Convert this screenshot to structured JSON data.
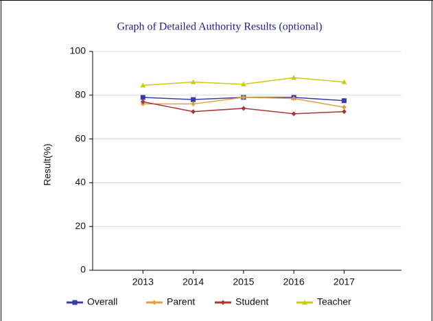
{
  "chart_data": {
    "type": "line",
    "title": "Graph of Detailed Authority Results (optional)",
    "y_label": "Result(%)",
    "categories": [
      "2013",
      "2014",
      "2015",
      "2016",
      "2017"
    ],
    "series": [
      {
        "name": "Overall",
        "color": "#3a3aa8",
        "marker": "square",
        "values": [
          79,
          78,
          79,
          79,
          77.5
        ]
      },
      {
        "name": "Parent",
        "color": "#e0a040",
        "marker": "diamond",
        "values": [
          76,
          76,
          79,
          78.5,
          74.5
        ]
      },
      {
        "name": "Student",
        "color": "#a83636",
        "marker": "diamond",
        "values": [
          77,
          72.5,
          74,
          71.5,
          72.5
        ]
      },
      {
        "name": "Teacher",
        "color": "#cccc10",
        "marker": "triangle",
        "values": [
          84.5,
          86,
          85,
          88,
          86
        ]
      }
    ],
    "ylim": [
      0,
      100
    ],
    "yticks": [
      0,
      20,
      40,
      60,
      80,
      100
    ],
    "grid": true,
    "legend": "bottom"
  }
}
